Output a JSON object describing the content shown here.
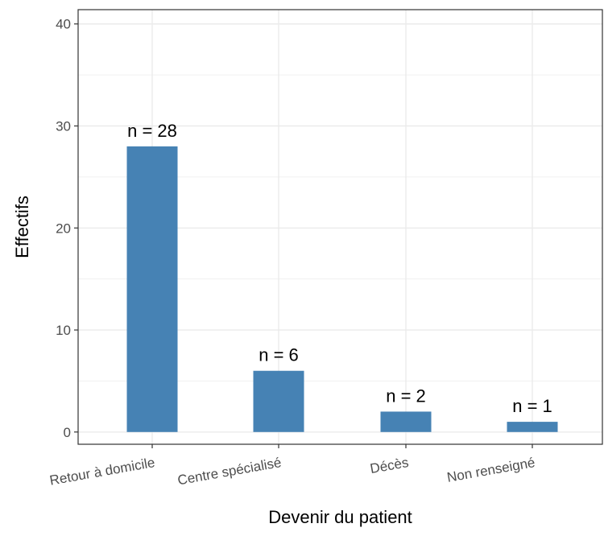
{
  "chart_data": {
    "type": "bar",
    "categories": [
      "Retour à domicile",
      "Centre spécialisé",
      "Décès",
      "Non renseigné"
    ],
    "values": [
      28,
      6,
      2,
      1
    ],
    "data_labels": [
      "n = 28",
      "n = 6",
      "n = 2",
      "n = 1"
    ],
    "xlabel": "Devenir du patient",
    "ylabel": "Effectifs",
    "ylim": [
      -1.2,
      41.4
    ],
    "yticks": [
      0,
      10,
      20,
      30,
      40
    ],
    "ytick_labels": [
      "0",
      "10",
      "20",
      "30",
      "40"
    ],
    "grid": true,
    "bar_color": "#4682b4",
    "x_tick_rotation_deg": 10
  }
}
